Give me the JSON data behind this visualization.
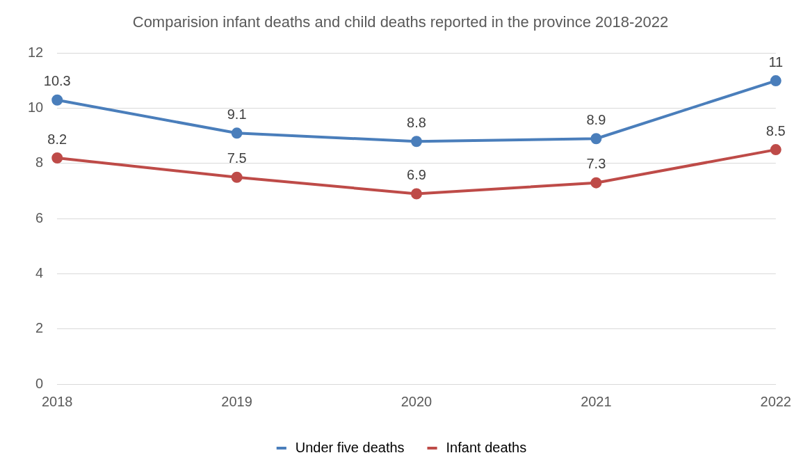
{
  "chart_data": {
    "type": "line",
    "title": "Comparision infant deaths and child deaths reported in the province 2018-2022",
    "categories": [
      "2018",
      "2019",
      "2020",
      "2021",
      "2022"
    ],
    "series": [
      {
        "name": "Under five deaths",
        "color": "#4a7ebb",
        "values": [
          10.3,
          9.1,
          8.8,
          8.9,
          11
        ]
      },
      {
        "name": "Infant deaths",
        "color": "#be4b48",
        "values": [
          8.2,
          7.5,
          6.9,
          7.3,
          8.5
        ]
      }
    ],
    "ylim": [
      0,
      12
    ],
    "yticks": [
      0,
      2,
      4,
      6,
      8,
      10,
      12
    ],
    "grid": "y",
    "legend": "bottom",
    "marker": "circle",
    "line_style": "solid",
    "data_labels": true
  }
}
